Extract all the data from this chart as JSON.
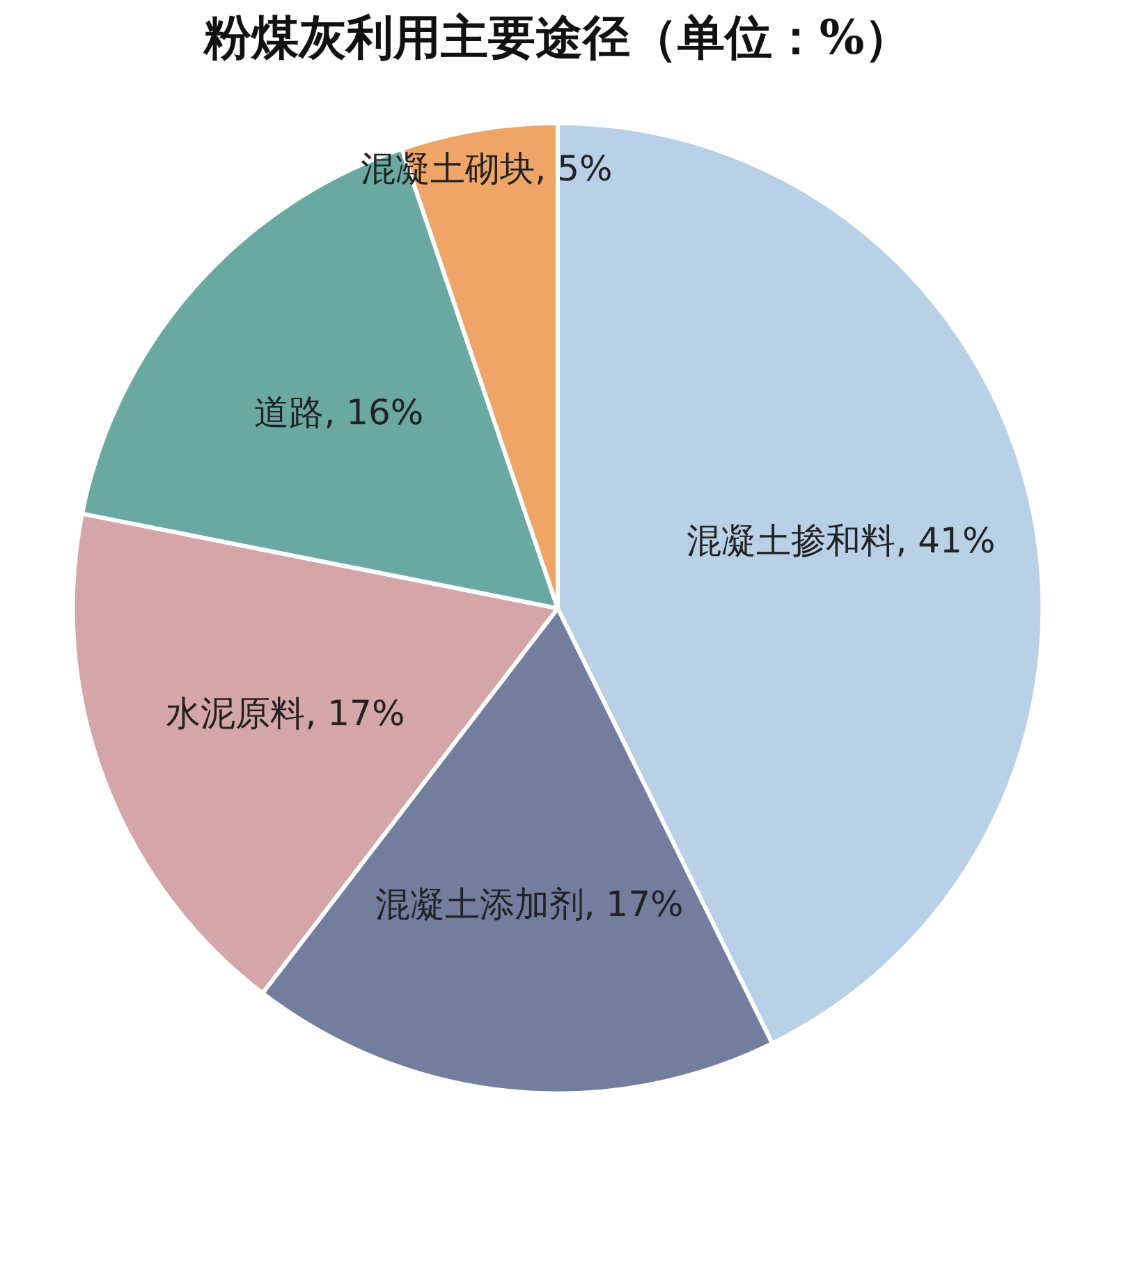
{
  "chart_data": {
    "type": "pie",
    "title": "粉煤灰利用主要途径（单位：%）",
    "categories": [
      "混凝土掺和料",
      "混凝土添加剂",
      "水泥原料",
      "道路",
      "混凝土砌块"
    ],
    "values": [
      41,
      17,
      17,
      16,
      5
    ],
    "value_labels": [
      "41%",
      "17%",
      "17%",
      "16%",
      "5%"
    ],
    "colors": [
      "#b9d1e6",
      "#737e9f",
      "#d5a6a7",
      "#6aa9a1",
      "#eea567"
    ]
  }
}
